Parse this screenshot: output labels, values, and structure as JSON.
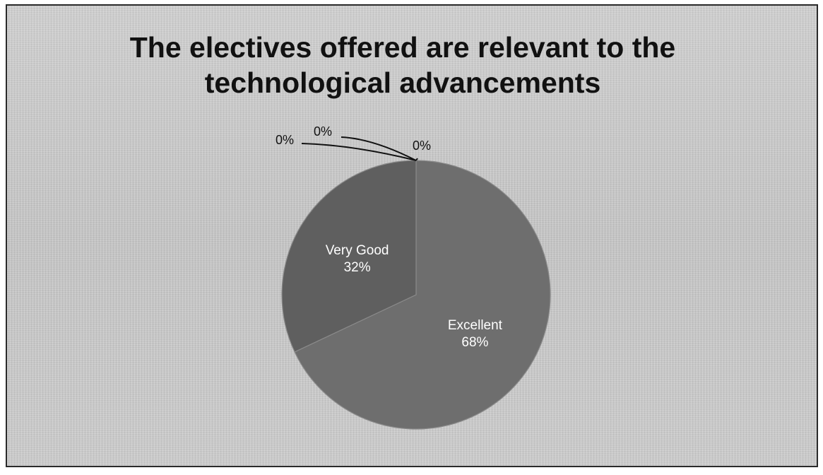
{
  "chart_data": {
    "type": "pie",
    "title_lines": [
      "The electives offered are relevant to the",
      "technological advancements"
    ],
    "slices": [
      {
        "category": "Excellent",
        "value": 68,
        "label_percent": "68%",
        "color": "#6e6e6e"
      },
      {
        "category": "Very Good",
        "value": 32,
        "label_percent": "32%",
        "color": "#5f5f5f"
      },
      {
        "category": "",
        "value": 0,
        "label_percent": "0%",
        "color": "#5a5a5a"
      },
      {
        "category": "",
        "value": 0,
        "label_percent": "0%",
        "color": "#5a5a5a"
      },
      {
        "category": "",
        "value": 0,
        "label_percent": "0%",
        "color": "#5a5a5a"
      }
    ],
    "legend": "none"
  }
}
